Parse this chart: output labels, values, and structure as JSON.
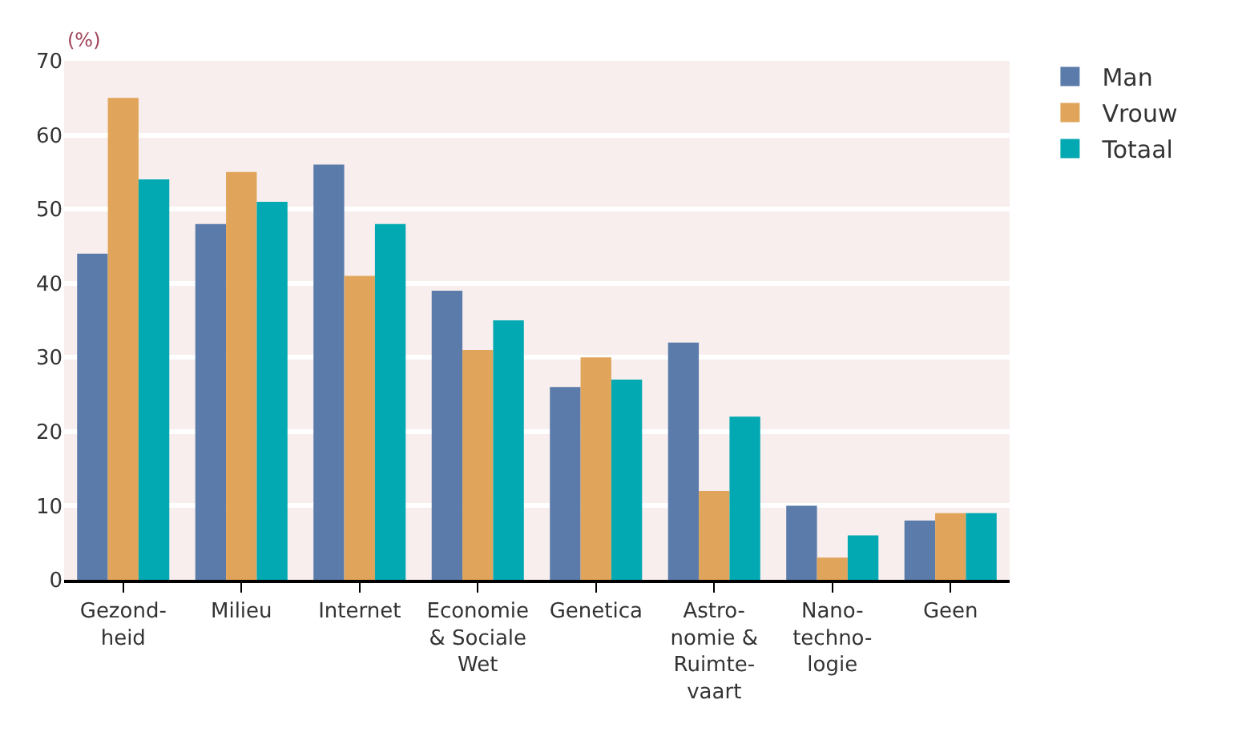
{
  "chart_data": {
    "type": "bar",
    "ylabel": "(%)",
    "categories": [
      "Gezond-\nheid",
      "Milieu",
      "Internet",
      "Economie\n& Sociale\nWet",
      "Genetica",
      "Astro-\nnomie &\nRuimte-\nvaart",
      "Nano-\ntechno-\nlogie",
      "Geen"
    ],
    "series": [
      {
        "name": "Man",
        "color": "#5b7bab",
        "values": [
          44,
          48,
          56,
          39,
          26,
          32,
          10,
          8
        ]
      },
      {
        "name": "Vrouw",
        "color": "#e0a55a",
        "values": [
          65,
          55,
          41,
          31,
          30,
          12,
          3,
          9
        ]
      },
      {
        "name": "Totaal",
        "color": "#02a9b2",
        "values": [
          54,
          51,
          48,
          35,
          27,
          22,
          6,
          9
        ]
      }
    ],
    "ylim": [
      0,
      70
    ],
    "yticks": [
      0,
      10,
      20,
      30,
      40,
      50,
      60,
      70
    ],
    "grid": "y",
    "legend": "top right"
  }
}
